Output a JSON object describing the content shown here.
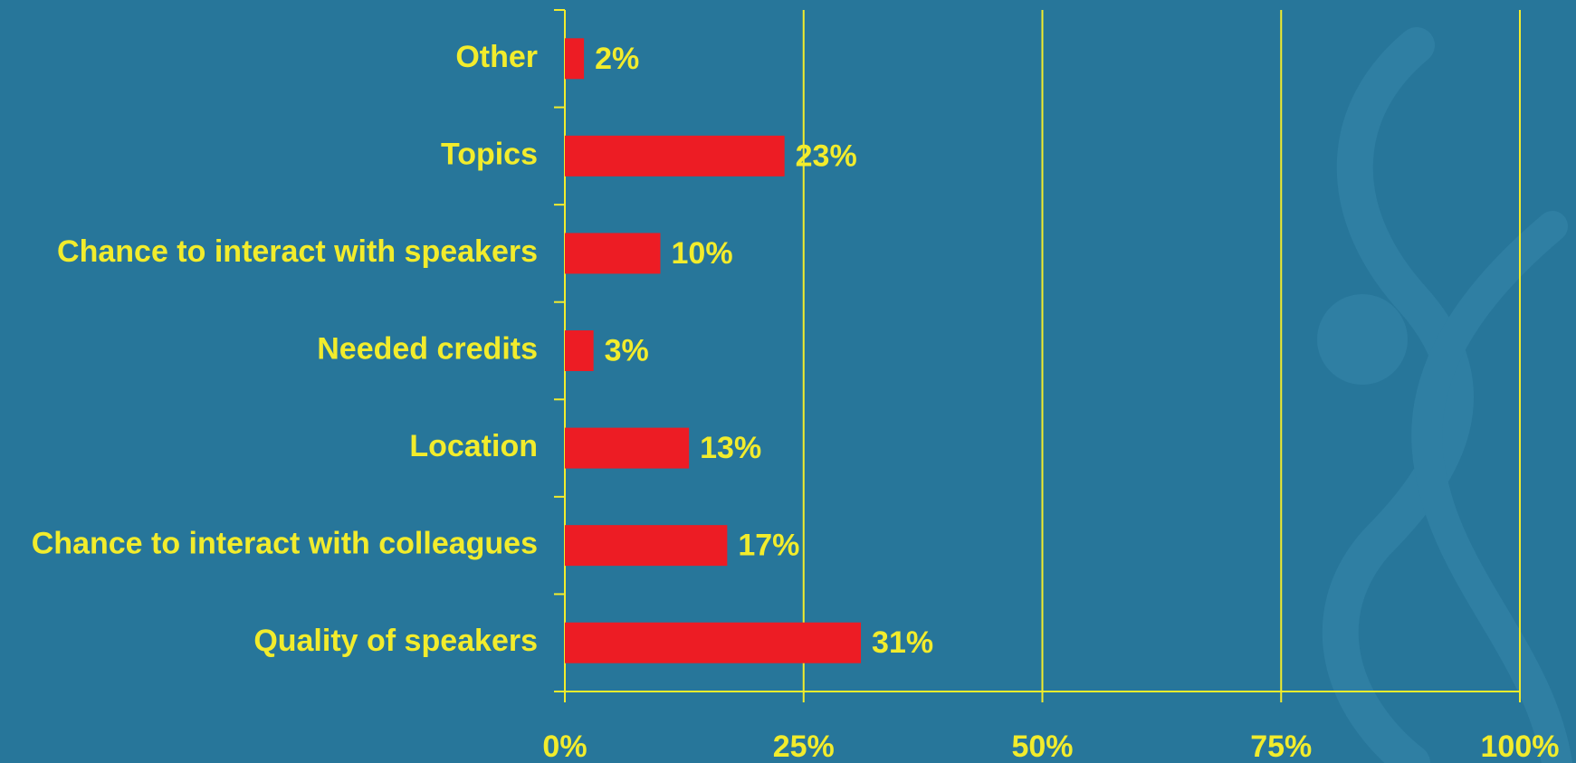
{
  "chart_data": {
    "type": "bar",
    "orientation": "horizontal",
    "categories": [
      "Other",
      "Topics",
      "Chance to interact with speakers",
      "Needed credits",
      "Location",
      "Chance to interact with colleagues",
      "Quality of speakers"
    ],
    "values": [
      2,
      23,
      10,
      3,
      13,
      17,
      31
    ],
    "value_labels": [
      "2%",
      "23%",
      "10%",
      "3%",
      "13%",
      "17%",
      "31%"
    ],
    "color": "#ed1c24",
    "xlim": [
      0,
      100
    ],
    "xticks": [
      {
        "value": 0,
        "label": "0%"
      },
      {
        "value": 25,
        "label": "25%"
      },
      {
        "value": 50,
        "label": "50%"
      },
      {
        "value": 75,
        "label": "75%"
      },
      {
        "value": 100,
        "label": "100%"
      }
    ],
    "grid": true
  }
}
